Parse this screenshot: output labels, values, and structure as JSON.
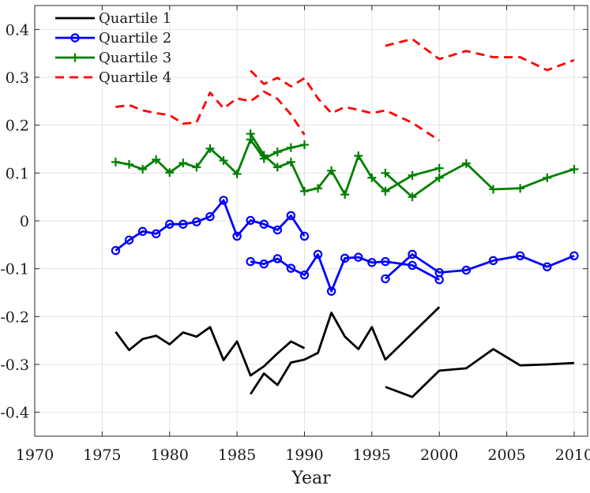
{
  "chart_data": {
    "type": "line",
    "title": "",
    "xlabel": "Year",
    "ylabel": "",
    "xlim": [
      1970,
      2011
    ],
    "ylim": [
      -0.45,
      0.45
    ],
    "xticks": [
      1970,
      1975,
      1980,
      1985,
      1990,
      1995,
      2000,
      2005,
      2010
    ],
    "yticks": [
      0.4,
      0.3,
      0.2,
      0.1,
      0,
      -0.1,
      -0.2,
      -0.3,
      -0.4
    ],
    "ytick_labels": [
      "0.4",
      "0.3",
      "0.2",
      "0.1",
      "0",
      "-0.1",
      "-0.2",
      "-0.3",
      "-0.4"
    ],
    "grid": true,
    "legend_position": "top-left",
    "series": [
      {
        "name": "Quartile 1",
        "color": "#000000",
        "style": "solid",
        "marker": "none",
        "segments": [
          {
            "x": [
              1976,
              1977,
              1978,
              1979,
              1980,
              1981,
              1982,
              1983,
              1984,
              1985,
              1986,
              1987,
              1988,
              1989,
              1990
            ],
            "y": [
              -0.232,
              -0.27,
              -0.247,
              -0.24,
              -0.258,
              -0.233,
              -0.242,
              -0.222,
              -0.291,
              -0.252,
              -0.323,
              -0.304,
              -0.277,
              -0.252,
              -0.266
            ]
          },
          {
            "x": [
              1986,
              1987,
              1988,
              1989,
              1990,
              1991,
              1992,
              1993,
              1994,
              1995,
              1996,
              1998,
              2000
            ],
            "y": [
              -0.362,
              -0.319,
              -0.343,
              -0.296,
              -0.29,
              -0.276,
              -0.192,
              -0.242,
              -0.268,
              -0.222,
              -0.29,
              -0.235,
              -0.18
            ]
          },
          {
            "x": [
              1996,
              1998,
              2000,
              2002,
              2004,
              2006,
              2008,
              2010
            ],
            "y": [
              -0.347,
              -0.368,
              -0.313,
              -0.308,
              -0.268,
              -0.302,
              -0.3,
              -0.297
            ]
          }
        ]
      },
      {
        "name": "Quartile 2",
        "color": "#0000ff",
        "style": "solid",
        "marker": "circle",
        "segments": [
          {
            "x": [
              1976,
              1977,
              1978,
              1979,
              1980,
              1981,
              1982,
              1983,
              1984,
              1985,
              1986,
              1987,
              1988,
              1989,
              1990
            ],
            "y": [
              -0.062,
              -0.04,
              -0.022,
              -0.027,
              -0.007,
              -0.007,
              -0.002,
              0.009,
              0.043,
              -0.032,
              0.001,
              -0.007,
              -0.019,
              0.011,
              -0.032
            ]
          },
          {
            "x": [
              1986,
              1987,
              1988,
              1989,
              1990,
              1991,
              1992,
              1993,
              1994,
              1995,
              1996,
              1998,
              2000
            ],
            "y": [
              -0.085,
              -0.09,
              -0.079,
              -0.099,
              -0.113,
              -0.07,
              -0.147,
              -0.078,
              -0.076,
              -0.087,
              -0.085,
              -0.093,
              -0.123
            ]
          },
          {
            "x": [
              1996,
              1998,
              2000,
              2002,
              2004,
              2006,
              2008,
              2010
            ],
            "y": [
              -0.121,
              -0.07,
              -0.108,
              -0.103,
              -0.083,
              -0.073,
              -0.096,
              -0.073
            ]
          }
        ]
      },
      {
        "name": "Quartile 3",
        "color": "#008000",
        "style": "solid",
        "marker": "plus",
        "segments": [
          {
            "x": [
              1976,
              1977,
              1978,
              1979,
              1980,
              1981,
              1982,
              1983,
              1984,
              1985,
              1986,
              1987,
              1988,
              1989,
              1990
            ],
            "y": [
              0.123,
              0.118,
              0.108,
              0.128,
              0.101,
              0.121,
              0.112,
              0.151,
              0.126,
              0.098,
              0.17,
              0.13,
              0.144,
              0.153,
              0.159
            ]
          },
          {
            "x": [
              1986,
              1987,
              1988,
              1989,
              1990,
              1991,
              1992,
              1993,
              1994,
              1995,
              1996,
              1998,
              2000
            ],
            "y": [
              0.182,
              0.137,
              0.112,
              0.123,
              0.062,
              0.068,
              0.105,
              0.055,
              0.136,
              0.09,
              0.062,
              0.095,
              0.11
            ]
          },
          {
            "x": [
              1996,
              1998,
              2000,
              2002,
              2004,
              2006,
              2008,
              2010
            ],
            "y": [
              0.1,
              0.05,
              0.09,
              0.12,
              0.066,
              0.068,
              0.09,
              0.108
            ]
          }
        ]
      },
      {
        "name": "Quartile 4",
        "color": "#ff0000",
        "style": "dashed",
        "marker": "none",
        "segments": [
          {
            "x": [
              1976,
              1977,
              1978,
              1979,
              1980,
              1981,
              1982,
              1983,
              1984,
              1985,
              1986,
              1987,
              1988,
              1989,
              1990
            ],
            "y": [
              0.238,
              0.242,
              0.231,
              0.225,
              0.221,
              0.203,
              0.206,
              0.268,
              0.235,
              0.256,
              0.25,
              0.27,
              0.255,
              0.222,
              0.18
            ]
          },
          {
            "x": [
              1986,
              1987,
              1988,
              1989,
              1990,
              1991,
              1992,
              1993,
              1994,
              1995,
              1996,
              1998,
              2000
            ],
            "y": [
              0.314,
              0.286,
              0.299,
              0.281,
              0.298,
              0.256,
              0.225,
              0.238,
              0.232,
              0.225,
              0.231,
              0.205,
              0.168
            ]
          },
          {
            "x": [
              1996,
              1998,
              2000,
              2002,
              2004,
              2006,
              2008,
              2010
            ],
            "y": [
              0.366,
              0.38,
              0.338,
              0.355,
              0.342,
              0.342,
              0.315,
              0.336
            ]
          }
        ]
      }
    ]
  }
}
